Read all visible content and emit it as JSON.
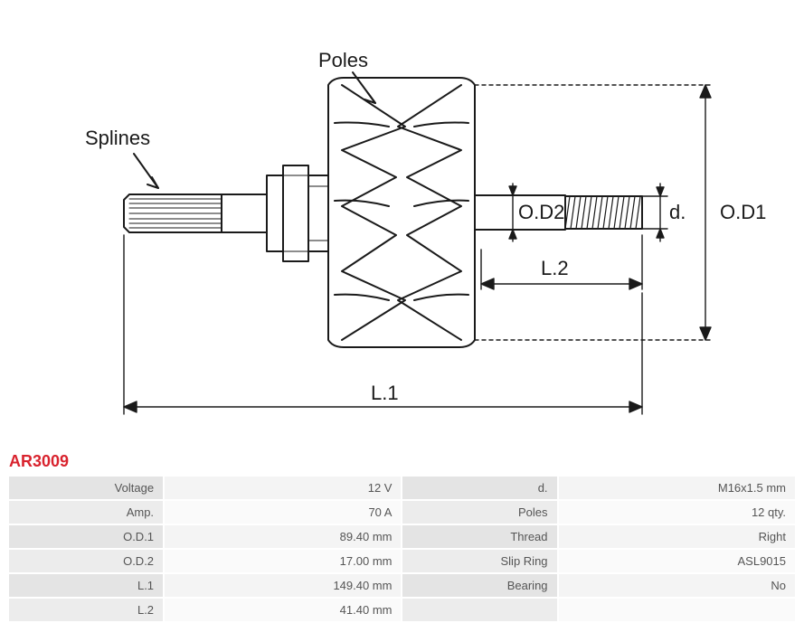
{
  "part_number": "AR3009",
  "diagram": {
    "type": "engineering-drawing",
    "background_color": "#ffffff",
    "stroke_color": "#1a1a1a",
    "stroke_width": 2,
    "thin_stroke": 1.2,
    "label_font_size": 22,
    "label_color": "#1a1a1a",
    "labels": {
      "poles": "Poles",
      "splines": "Splines",
      "od1": "O.D1",
      "od2": "O.D2",
      "d": "d.",
      "l1": "L.1",
      "l2": "L.2"
    }
  },
  "specs": {
    "left": [
      {
        "k": "Voltage",
        "v": "12 V"
      },
      {
        "k": "Amp.",
        "v": "70 A"
      },
      {
        "k": "O.D.1",
        "v": "89.40 mm"
      },
      {
        "k": "O.D.2",
        "v": "17.00 mm"
      },
      {
        "k": "L.1",
        "v": "149.40 mm"
      },
      {
        "k": "L.2",
        "v": "41.40 mm"
      }
    ],
    "right": [
      {
        "k": "d.",
        "v": "M16x1.5 mm"
      },
      {
        "k": "Poles",
        "v": "12 qty."
      },
      {
        "k": "Thread",
        "v": "Right"
      },
      {
        "k": "Slip Ring",
        "v": "ASL9015"
      },
      {
        "k": "Bearing",
        "v": "No"
      }
    ]
  },
  "table_style": {
    "key_bg": "#e4e4e4",
    "val_bg": "#f4f4f4",
    "key_bg_alt": "#ececec",
    "val_bg_alt": "#fafafa",
    "text_color": "#555555",
    "font_size": 13,
    "part_number_color": "#d9232e"
  }
}
